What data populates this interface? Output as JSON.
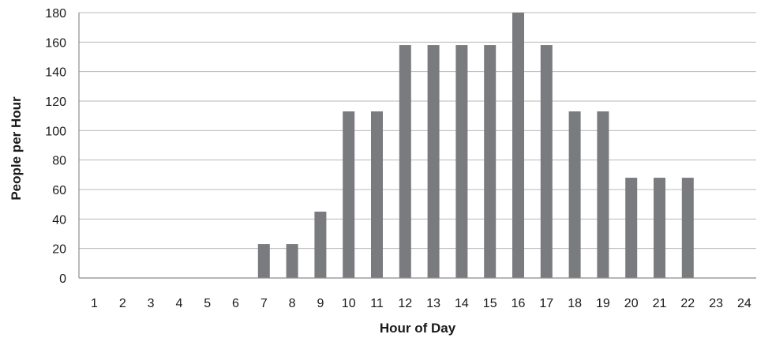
{
  "chart_data": {
    "type": "bar",
    "title": "",
    "xlabel": "Hour of Day",
    "ylabel": "People per Hour",
    "categories": [
      "1",
      "2",
      "3",
      "4",
      "5",
      "6",
      "7",
      "8",
      "9",
      "10",
      "11",
      "12",
      "13",
      "14",
      "15",
      "16",
      "17",
      "18",
      "19",
      "20",
      "21",
      "22",
      "23",
      "24"
    ],
    "values": [
      0,
      0,
      0,
      0,
      0,
      0,
      23,
      23,
      45,
      113,
      113,
      158,
      158,
      158,
      158,
      180,
      158,
      113,
      113,
      68,
      68,
      68,
      0,
      0
    ],
    "ylim": [
      0,
      180
    ],
    "yticks": [
      "0",
      "20",
      "40",
      "60",
      "80",
      "100",
      "120",
      "140",
      "160",
      "180"
    ],
    "grid": true,
    "legend": "none",
    "colors": {
      "bar": "#7a7b7f",
      "grid": "#b8b8b8",
      "axis": "#8c8c8c",
      "text": "#1a1a1a"
    }
  }
}
